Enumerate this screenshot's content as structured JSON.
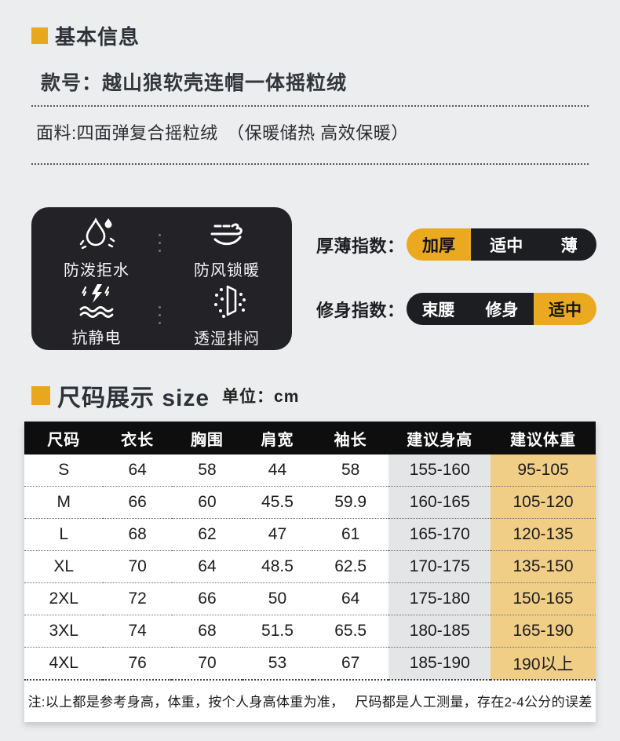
{
  "accent_color": "#e9a71f",
  "panel_color": "#232327",
  "basic_info": {
    "title": "基本信息",
    "model": "款号：越山狼软壳连帽一体摇粒绒",
    "fabric": "面料:四面弹复合摇粒绒　（保暖储热 高效保暖）"
  },
  "features": {
    "items": [
      {
        "icon": "water-repellent-icon",
        "label": "防泼拒水"
      },
      {
        "icon": "windproof-icon",
        "label": "防风锁暖"
      },
      {
        "icon": "anti-static-icon",
        "label": "抗静电"
      },
      {
        "icon": "breathable-icon",
        "label": "透湿排闷"
      }
    ]
  },
  "indices": [
    {
      "label": "厚薄指数：",
      "options": [
        "加厚",
        "适中",
        "薄"
      ],
      "selected": "加厚"
    },
    {
      "label": "修身指数：",
      "options": [
        "束腰",
        "修身",
        "适中"
      ],
      "selected": "适中"
    }
  ],
  "size_section": {
    "title": "尺码展示 size",
    "unit": "单位：cm"
  },
  "size_table": {
    "headers": [
      "尺码",
      "衣长",
      "胸围",
      "肩宽",
      "袖长",
      "建议身高",
      "建议体重"
    ],
    "rows": [
      [
        "S",
        "64",
        "58",
        "44",
        "58",
        "155-160",
        "95-105"
      ],
      [
        "M",
        "66",
        "60",
        "45.5",
        "59.9",
        "160-165",
        "105-120"
      ],
      [
        "L",
        "68",
        "62",
        "47",
        "61",
        "165-170",
        "120-135"
      ],
      [
        "XL",
        "70",
        "64",
        "48.5",
        "62.5",
        "170-175",
        "135-150"
      ],
      [
        "2XL",
        "72",
        "66",
        "50",
        "64",
        "175-180",
        "150-165"
      ],
      [
        "3XL",
        "74",
        "68",
        "51.5",
        "65.5",
        "180-185",
        "165-190"
      ],
      [
        "4XL",
        "76",
        "70",
        "53",
        "67",
        "185-190",
        "190以上"
      ]
    ],
    "note": "注:以上都是参考身高，体重，按个人身高体重为准，　 尺码都是人工测量，存在2-4公分的误差"
  }
}
